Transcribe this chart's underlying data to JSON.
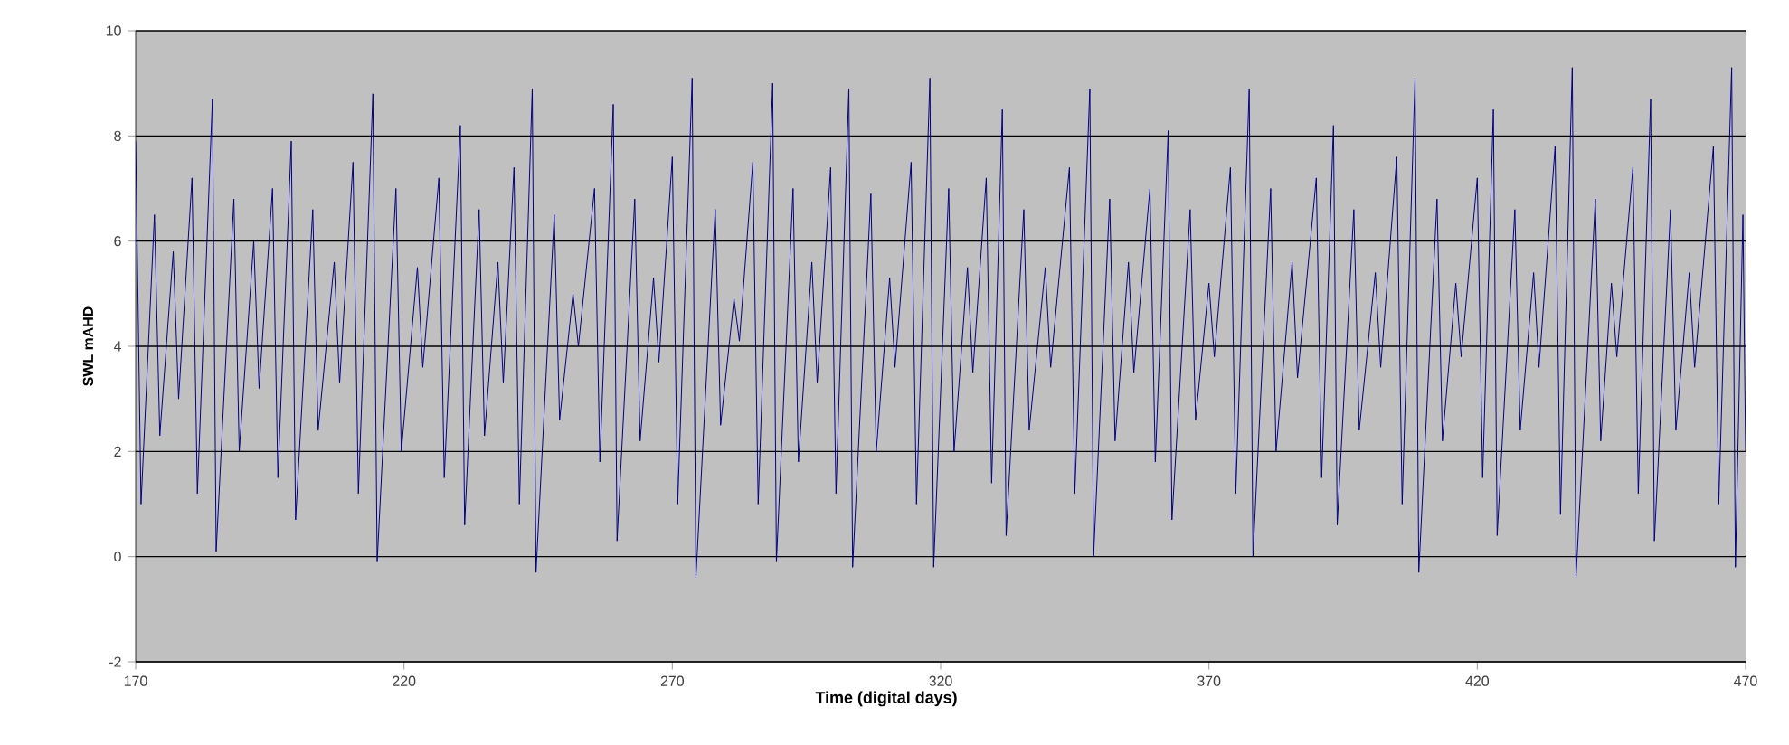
{
  "chart_data": {
    "type": "line",
    "xlabel": "Time (digital days)",
    "ylabel": "SWL mAHD",
    "xlim": [
      170,
      470
    ],
    "ylim": [
      -2,
      10
    ],
    "xticks": [
      170,
      220,
      270,
      320,
      370,
      420,
      470
    ],
    "yticks": [
      -2,
      0,
      2,
      4,
      6,
      8,
      10
    ],
    "grid": "y",
    "marker": "none",
    "line_style": "solid",
    "series": [
      {
        "color": "#000080",
        "x": [
          170,
          171,
          173.5,
          174.5,
          177,
          178,
          180.5,
          181.5,
          184.3,
          185,
          188.3,
          189.3,
          192,
          193,
          195.5,
          196.5,
          199,
          199.8,
          203,
          204,
          207,
          208,
          210.5,
          211.5,
          214.2,
          215,
          218.5,
          219.5,
          222.5,
          223.5,
          226.5,
          227.5,
          230.5,
          231.3,
          234,
          235,
          237.5,
          238.5,
          240.5,
          241.5,
          243.9,
          244.6,
          248,
          249,
          251.5,
          252.5,
          255.5,
          256.5,
          259,
          259.7,
          263,
          264,
          266.5,
          267.5,
          270,
          271,
          273.7,
          274.4,
          278,
          279,
          281.5,
          282.5,
          285,
          286,
          288.7,
          289.4,
          292.5,
          293.5,
          296,
          297,
          299.5,
          300.5,
          302.9,
          303.6,
          307,
          308,
          310.5,
          311.5,
          314.5,
          315.5,
          318,
          318.7,
          321.5,
          322.5,
          325,
          326,
          328.5,
          329.5,
          331.5,
          332.2,
          335.5,
          336.5,
          339.5,
          340.5,
          344,
          345,
          347.8,
          348.5,
          351.5,
          352.5,
          355,
          356,
          359,
          360,
          362.4,
          363.1,
          366.5,
          367.5,
          370,
          371,
          374,
          375,
          377.5,
          378.2,
          381.5,
          382.5,
          385.5,
          386.5,
          390,
          391,
          393.2,
          393.9,
          397,
          398,
          401,
          402,
          405,
          406,
          408.4,
          409.1,
          412.5,
          413.5,
          416,
          417,
          420,
          421,
          423,
          423.7,
          427,
          428,
          430.5,
          431.5,
          434.5,
          435.5,
          437.7,
          438.4,
          442,
          443,
          445,
          446,
          449,
          450,
          452.3,
          453,
          456,
          457,
          459.5,
          460.5,
          464,
          465,
          467.4,
          468.1,
          469.5,
          470
        ],
        "values": [
          7.9,
          1.0,
          6.5,
          2.3,
          5.8,
          3.0,
          7.2,
          1.2,
          8.7,
          0.1,
          6.8,
          2.0,
          6.0,
          3.2,
          7.0,
          1.5,
          7.9,
          0.7,
          6.6,
          2.4,
          5.6,
          3.3,
          7.5,
          1.2,
          8.8,
          -0.1,
          7.0,
          2.0,
          5.5,
          3.6,
          7.2,
          1.5,
          8.2,
          0.6,
          6.6,
          2.3,
          5.6,
          3.3,
          7.4,
          1.0,
          8.9,
          -0.3,
          6.5,
          2.6,
          5.0,
          4.0,
          7.0,
          1.8,
          8.6,
          0.3,
          6.8,
          2.2,
          5.3,
          3.7,
          7.6,
          1.0,
          9.1,
          -0.4,
          6.6,
          2.5,
          4.9,
          4.1,
          7.5,
          1.0,
          9.0,
          -0.1,
          7.0,
          1.8,
          5.6,
          3.3,
          7.4,
          1.2,
          8.9,
          -0.2,
          6.9,
          2.0,
          5.3,
          3.6,
          7.5,
          1.0,
          9.1,
          -0.2,
          7.0,
          2.0,
          5.5,
          3.5,
          7.2,
          1.4,
          8.5,
          0.4,
          6.6,
          2.4,
          5.5,
          3.6,
          7.4,
          1.2,
          8.9,
          0.0,
          6.8,
          2.2,
          5.6,
          3.5,
          7.0,
          1.8,
          8.1,
          0.7,
          6.6,
          2.6,
          5.2,
          3.8,
          7.4,
          1.2,
          8.9,
          0.0,
          7.0,
          2.0,
          5.6,
          3.4,
          7.2,
          1.5,
          8.2,
          0.6,
          6.6,
          2.4,
          5.4,
          3.6,
          7.6,
          1.0,
          9.1,
          -0.3,
          6.8,
          2.2,
          5.2,
          3.8,
          7.2,
          1.5,
          8.5,
          0.4,
          6.6,
          2.4,
          5.4,
          3.6,
          7.8,
          0.8,
          9.3,
          -0.4,
          6.8,
          2.2,
          5.2,
          3.8,
          7.4,
          1.2,
          8.7,
          0.3,
          6.6,
          2.4,
          5.4,
          3.6,
          7.8,
          1.0,
          9.3,
          -0.2,
          6.5,
          2.0
        ]
      }
    ]
  }
}
